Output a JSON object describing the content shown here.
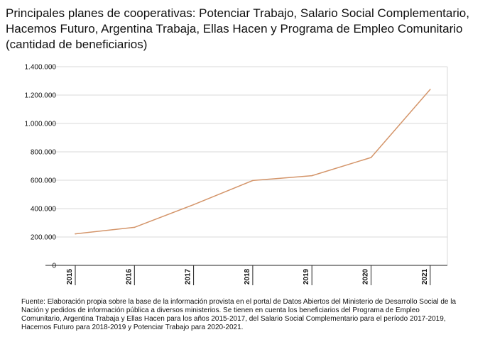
{
  "chart_data": {
    "type": "line",
    "title": "Principales planes de cooperativas: Potenciar Trabajo, Salario Social Complementario, Hacemos Futuro, Argentina Trabaja, Ellas Hacen y Programa de Empleo Comunitario (cantidad de beneficiarios)",
    "x": [
      "2015",
      "2016",
      "2017",
      "2018",
      "2019",
      "2020",
      "2021"
    ],
    "series": [
      {
        "values": [
          222000,
          268000,
          428000,
          598000,
          632000,
          760000,
          1240000
        ]
      }
    ],
    "ylim": [
      0,
      1400000
    ],
    "yticks": [
      0,
      200000,
      400000,
      600000,
      800000,
      1000000,
      1200000,
      1400000
    ],
    "ytick_labels": [
      "0",
      "200.000",
      "400.000",
      "600.000",
      "800.000",
      "1.000.000",
      "1.200.000",
      "1.400.000"
    ],
    "xlabel": "",
    "ylabel": "",
    "grid": "horizontal",
    "line_color": "#d4956a"
  },
  "source_note": "Fuente: Elaboración propia sobre la base de la información provista en el portal de Datos Abiertos del Ministerio de Desarrollo Social de la Nación y pedidos de información pública a diversos ministerios. Se tienen en cuenta los beneficiarios del Programa de Empleo Comunitario, Argentina Trabaja y Ellas Hacen para los años 2015-2017, del Salario Social Complementario para el período 2017-2019, Hacemos Futuro para 2018-2019 y Potenciar Trabajo para 2020-2021."
}
